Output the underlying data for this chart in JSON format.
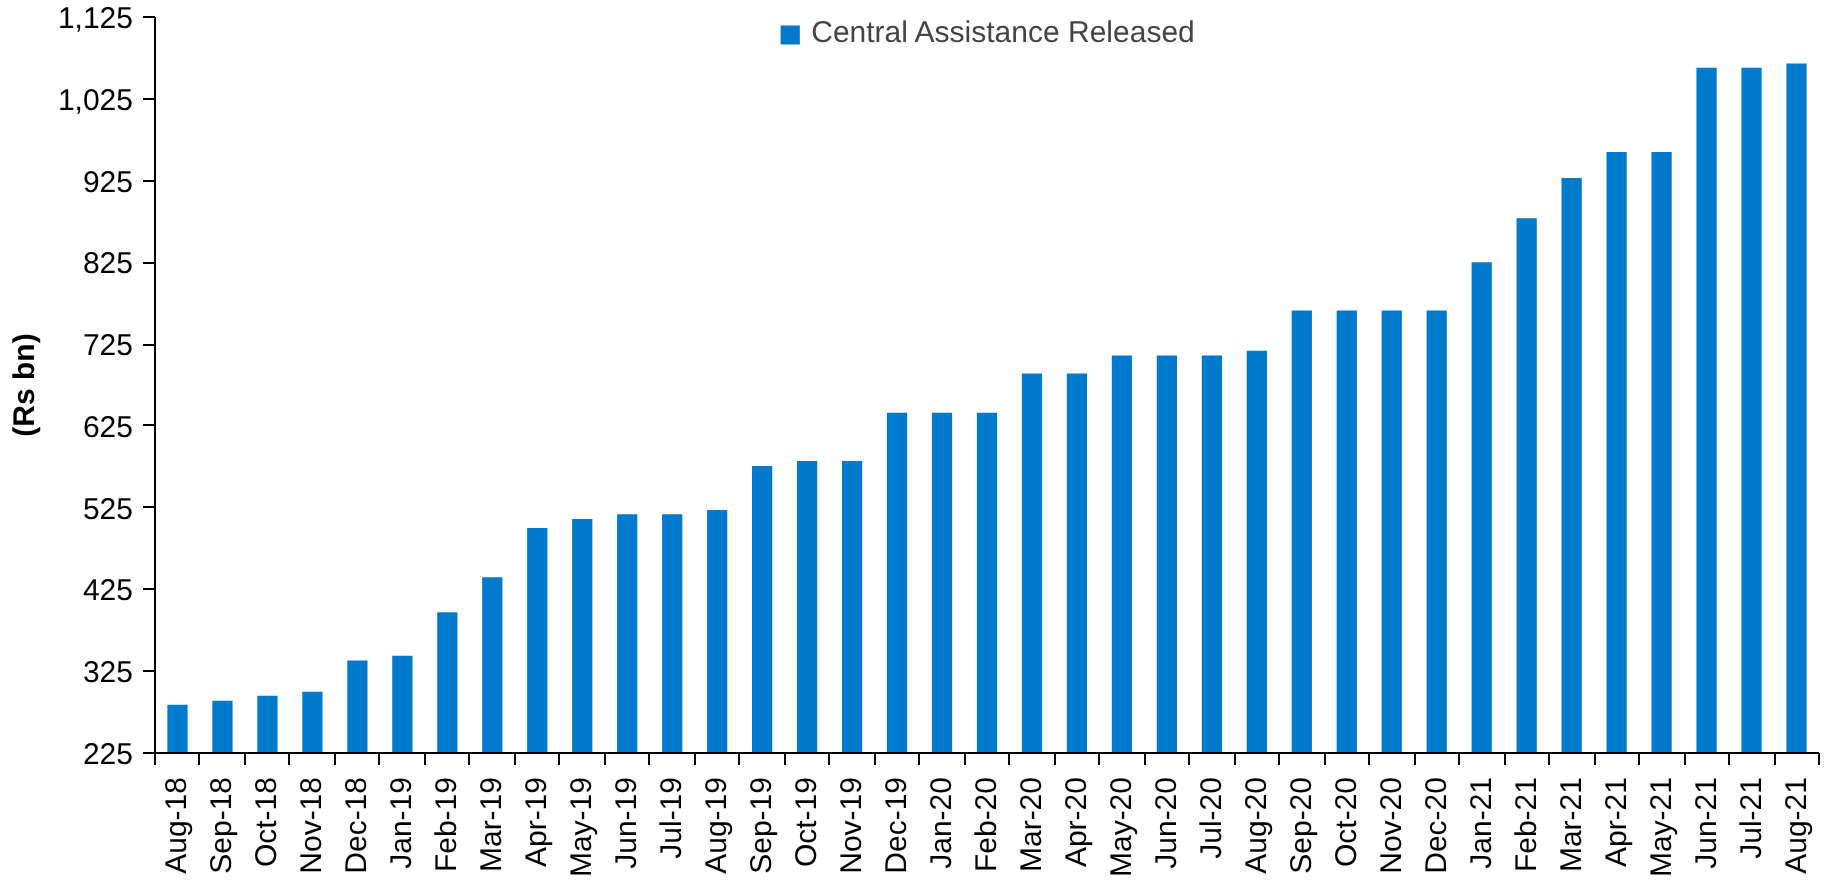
{
  "chart_data": {
    "type": "bar",
    "ylabel": "(Rs bn)",
    "categories": [
      "Aug-18",
      "Sep-18",
      "Oct-18",
      "Nov-18",
      "Dec-18",
      "Jan-19",
      "Feb-19",
      "Mar-19",
      "Apr-19",
      "May-19",
      "Jun-19",
      "Jul-19",
      "Aug-19",
      "Sep-19",
      "Oct-19",
      "Nov-19",
      "Dec-19",
      "Jan-20",
      "Feb-20",
      "Mar-20",
      "Apr-20",
      "May-20",
      "Jun-20",
      "Jul-20",
      "Aug-20",
      "Sep-20",
      "Oct-20",
      "Nov-20",
      "Dec-20",
      "Jan-21",
      "Feb-21",
      "Mar-21",
      "Apr-21",
      "May-21",
      "Jun-21",
      "Jul-21",
      "Aug-21"
    ],
    "series": [
      {
        "name": "Central Assistance Released",
        "color": "#007acc",
        "values": [
          284,
          289,
          295,
          300,
          338,
          344,
          397,
          440,
          500,
          511,
          517,
          517,
          522,
          576,
          582,
          582,
          641,
          641,
          641,
          689,
          689,
          711,
          711,
          711,
          717,
          766,
          766,
          766,
          766,
          825,
          879,
          928,
          960,
          960,
          1063,
          1063,
          1068
        ]
      }
    ],
    "ylim": [
      225,
      1125
    ],
    "yticks": [
      {
        "value": 225,
        "label": "225"
      },
      {
        "value": 325,
        "label": "325"
      },
      {
        "value": 425,
        "label": "425"
      },
      {
        "value": 525,
        "label": "525"
      },
      {
        "value": 625,
        "label": "625"
      },
      {
        "value": 725,
        "label": "725"
      },
      {
        "value": 825,
        "label": "825"
      },
      {
        "value": 925,
        "label": "925"
      },
      {
        "value": 1025,
        "label": "1,025"
      },
      {
        "value": 1125,
        "label": "1,125"
      }
    ],
    "grid": false,
    "legend": "top"
  }
}
